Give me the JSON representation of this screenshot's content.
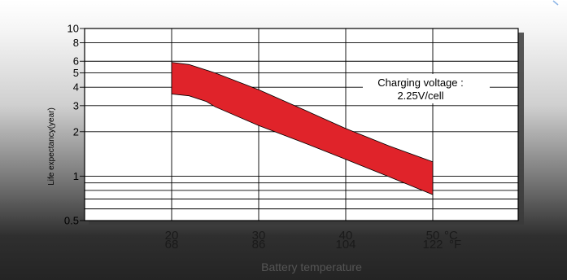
{
  "chart_data": {
    "type": "area",
    "ylabel": "Life expectancy(year)",
    "xlabel": "Battery temperature",
    "yscale": "log",
    "ylim": [
      0.5,
      10
    ],
    "xlim": [
      20,
      50
    ],
    "yticks": [
      {
        "value": 10,
        "label": "10"
      },
      {
        "value": 8,
        "label": "8"
      },
      {
        "value": 6,
        "label": "6"
      },
      {
        "value": 5,
        "label": "5"
      },
      {
        "value": 4,
        "label": "4"
      },
      {
        "value": 3,
        "label": "3"
      },
      {
        "value": 2,
        "label": "2"
      },
      {
        "value": 1,
        "label": "1"
      },
      {
        "value": 0.5,
        "label": "0.5"
      }
    ],
    "xticks": [
      {
        "value": 20,
        "celsius": "20",
        "fahrenheit": "68"
      },
      {
        "value": 30,
        "celsius": "30",
        "fahrenheit": "86"
      },
      {
        "value": 40,
        "celsius": "40",
        "fahrenheit": "104"
      },
      {
        "value": 50,
        "celsius": "50",
        "fahrenheit": "122"
      }
    ],
    "x_unit_celsius": "°C",
    "x_unit_fahrenheit": "°F",
    "minor_gridlines_y": [
      0.7,
      0.8,
      0.9,
      0.6
    ],
    "grid": true,
    "band": {
      "upper": [
        {
          "x": 20,
          "y": 5.9
        },
        {
          "x": 22,
          "y": 5.7
        },
        {
          "x": 25,
          "y": 5.0
        },
        {
          "x": 30,
          "y": 3.85
        },
        {
          "x": 35,
          "y": 2.85
        },
        {
          "x": 40,
          "y": 2.1
        },
        {
          "x": 45,
          "y": 1.6
        },
        {
          "x": 50,
          "y": 1.25
        }
      ],
      "lower": [
        {
          "x": 20,
          "y": 3.6
        },
        {
          "x": 22,
          "y": 3.5
        },
        {
          "x": 24,
          "y": 3.2
        },
        {
          "x": 25,
          "y": 2.95
        },
        {
          "x": 30,
          "y": 2.2
        },
        {
          "x": 35,
          "y": 1.7
        },
        {
          "x": 40,
          "y": 1.3
        },
        {
          "x": 45,
          "y": 0.99
        },
        {
          "x": 50,
          "y": 0.75
        }
      ],
      "color": "#e0232a"
    },
    "annotation_lines": [
      "Charging voltage :",
      "2.25V/cell"
    ]
  }
}
